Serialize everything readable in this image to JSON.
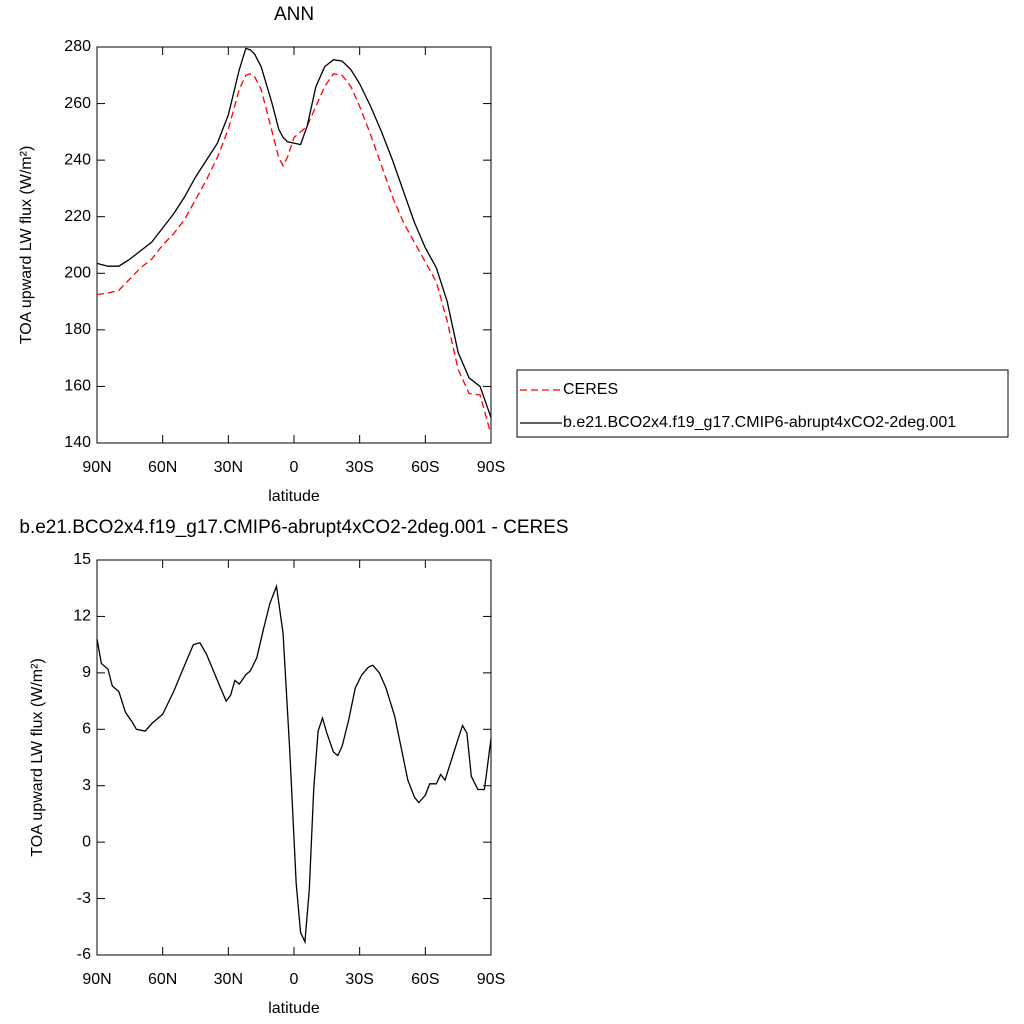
{
  "chart_data": [
    {
      "type": "line",
      "title": "ANN",
      "xlabel": "latitude",
      "ylabel": "TOA upward LW flux (W/m²)",
      "x": [
        90,
        85,
        80,
        75,
        70,
        65,
        60,
        55,
        50,
        45,
        40,
        35,
        30,
        25,
        22,
        20,
        18,
        15,
        10,
        7,
        5,
        3,
        0,
        -3,
        -6,
        -10,
        -14,
        -18,
        -22,
        -26,
        -30,
        -35,
        -40,
        -45,
        -50,
        -55,
        -60,
        -65,
        -70,
        -75,
        -80,
        -85,
        -90
      ],
      "series": [
        {
          "name": "CERES",
          "color": "#ff0000",
          "dash": "dashed",
          "values": [
            192.5,
            193,
            194,
            198,
            202,
            205,
            210,
            214,
            219,
            226,
            233,
            241,
            251,
            265,
            270,
            270.5,
            269.5,
            265,
            250,
            241,
            238,
            241,
            248,
            250,
            252,
            259,
            266,
            270.5,
            270,
            266,
            259,
            249,
            238,
            227,
            218,
            211,
            204,
            197,
            183,
            166,
            157.5,
            157,
            143
          ]
        },
        {
          "name": "b.e21.BCO2x4.f19_g17.CMIP6-abrupt4xCO2-2deg.001",
          "color": "#000000",
          "dash": "solid",
          "values": [
            203.5,
            202.5,
            202.5,
            205,
            208,
            211,
            216,
            221,
            227,
            234,
            240,
            246,
            256,
            272,
            279.5,
            279,
            277.5,
            273,
            260,
            251,
            248,
            246.5,
            246,
            245.5,
            252,
            266,
            273,
            275.5,
            275,
            272,
            267,
            259,
            250,
            240,
            229,
            218,
            209,
            202,
            190,
            172,
            163,
            160,
            149
          ]
        }
      ],
      "xlim": [
        90,
        -90
      ],
      "ylim": [
        140,
        280
      ],
      "xticks": [
        {
          "value": 90,
          "label": "90N"
        },
        {
          "value": 60,
          "label": "60N"
        },
        {
          "value": 30,
          "label": "30N"
        },
        0,
        {
          "value": -30,
          "label": "30S"
        },
        {
          "value": -60,
          "label": "60S"
        },
        {
          "value": -90,
          "label": "90S"
        }
      ],
      "yticks": [
        140,
        160,
        180,
        200,
        220,
        240,
        260,
        280
      ],
      "legend": "outside-right"
    },
    {
      "type": "line",
      "title": "b.e21.BCO2x4.f19_g17.CMIP6-abrupt4xCO2-2deg.001 - CERES",
      "xlabel": "latitude",
      "ylabel": "TOA upward LW flux (W/m²)",
      "x": [
        90,
        88,
        85,
        83,
        80,
        77,
        74,
        72,
        68,
        65,
        60,
        55,
        50,
        46,
        43,
        40,
        35,
        31,
        29,
        27,
        25,
        22,
        20,
        17,
        14,
        11,
        8,
        5,
        2,
        -1,
        -3,
        -5,
        -7,
        -9,
        -11,
        -13,
        -15,
        -18,
        -20,
        -22,
        -25,
        -28,
        -31,
        -34,
        -36,
        -39,
        -42,
        -46,
        -49,
        -52,
        -55,
        -57,
        -60,
        -62,
        -65,
        -67,
        -69,
        -72,
        -75,
        -77,
        -79,
        -81,
        -84,
        -87,
        -90
      ],
      "series": [
        {
          "color": "#000000",
          "dash": "solid",
          "values": [
            10.8,
            9.5,
            9.2,
            8.3,
            8,
            6.9,
            6.4,
            6.0,
            5.9,
            6.3,
            6.8,
            8,
            9.4,
            10.5,
            10.6,
            10,
            8.6,
            7.5,
            7.8,
            8.6,
            8.4,
            8.9,
            9.1,
            9.8,
            11.3,
            12.7,
            13.6,
            11.1,
            5,
            -2.2,
            -4.8,
            -5.3,
            -2.5,
            2.8,
            5.9,
            6.6,
            5.8,
            4.8,
            4.6,
            5.1,
            6.5,
            8.2,
            8.9,
            9.3,
            9.4,
            9,
            8.2,
            6.7,
            5,
            3.3,
            2.4,
            2.1,
            2.5,
            3.1,
            3.1,
            3.6,
            3.3,
            4.4,
            5.5,
            6.2,
            5.8,
            3.5,
            2.8,
            2.8,
            5.5
          ]
        }
      ],
      "xlim": [
        90,
        -90
      ],
      "ylim": [
        -6,
        15
      ],
      "xticks": [
        {
          "value": 90,
          "label": "90N"
        },
        {
          "value": 60,
          "label": "60N"
        },
        {
          "value": 30,
          "label": "30N"
        },
        0,
        {
          "value": -30,
          "label": "30S"
        },
        {
          "value": -60,
          "label": "60S"
        },
        {
          "value": -90,
          "label": "90S"
        }
      ],
      "yticks": [
        -6,
        -3,
        0,
        3,
        6,
        9,
        12,
        15
      ]
    }
  ]
}
